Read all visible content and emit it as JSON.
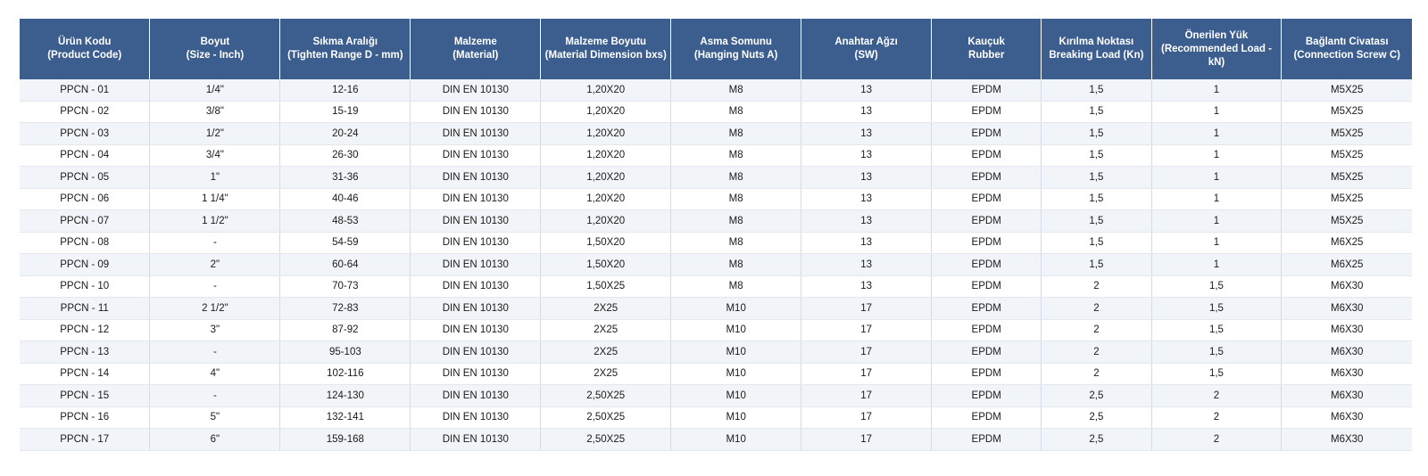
{
  "table": {
    "headers": [
      "Ürün Kodu\n(Product Code)",
      "Boyut\n(Size - Inch)",
      "Sıkma Aralığı\n(Tighten Range D - mm)",
      "Malzeme\n(Material)",
      "Malzeme Boyutu\n(Material Dimension bxs)",
      "Asma Somunu\n(Hanging Nuts A)",
      "Anahtar Ağzı\n(SW)",
      "Kauçuk\nRubber",
      "Kırılma Noktası\nBreaking Load (Kn)",
      "Önerilen Yük\n(Recommended Load -\nkN)",
      "Bağlantı Civatası\n(Connection Screw C)"
    ],
    "rows": [
      [
        "PPCN - 01",
        "1/4\"",
        "12-16",
        "DIN EN 10130",
        "1,20X20",
        "M8",
        "13",
        "EPDM",
        "1,5",
        "1",
        "M5X25"
      ],
      [
        "PPCN - 02",
        "3/8\"",
        "15-19",
        "DIN EN 10130",
        "1,20X20",
        "M8",
        "13",
        "EPDM",
        "1,5",
        "1",
        "M5X25"
      ],
      [
        "PPCN - 03",
        "1/2\"",
        "20-24",
        "DIN EN 10130",
        "1,20X20",
        "M8",
        "13",
        "EPDM",
        "1,5",
        "1",
        "M5X25"
      ],
      [
        "PPCN - 04",
        "3/4\"",
        "26-30",
        "DIN EN 10130",
        "1,20X20",
        "M8",
        "13",
        "EPDM",
        "1,5",
        "1",
        "M5X25"
      ],
      [
        "PPCN - 05",
        "1\"",
        "31-36",
        "DIN EN 10130",
        "1,20X20",
        "M8",
        "13",
        "EPDM",
        "1,5",
        "1",
        "M5X25"
      ],
      [
        "PPCN - 06",
        "1 1/4\"",
        "40-46",
        "DIN EN 10130",
        "1,20X20",
        "M8",
        "13",
        "EPDM",
        "1,5",
        "1",
        "M5X25"
      ],
      [
        "PPCN - 07",
        "1 1/2\"",
        "48-53",
        "DIN EN 10130",
        "1,20X20",
        "M8",
        "13",
        "EPDM",
        "1,5",
        "1",
        "M5X25"
      ],
      [
        "PPCN - 08",
        "-",
        "54-59",
        "DIN EN 10130",
        "1,50X20",
        "M8",
        "13",
        "EPDM",
        "1,5",
        "1",
        "M6X25"
      ],
      [
        "PPCN - 09",
        "2\"",
        "60-64",
        "DIN EN 10130",
        "1,50X20",
        "M8",
        "13",
        "EPDM",
        "1,5",
        "1",
        "M6X25"
      ],
      [
        "PPCN - 10",
        "-",
        "70-73",
        "DIN EN 10130",
        "1,50X25",
        "M8",
        "13",
        "EPDM",
        "2",
        "1,5",
        "M6X30"
      ],
      [
        "PPCN - 11",
        "2 1/2\"",
        "72-83",
        "DIN EN 10130",
        "2X25",
        "M10",
        "17",
        "EPDM",
        "2",
        "1,5",
        "M6X30"
      ],
      [
        "PPCN - 12",
        "3\"",
        "87-92",
        "DIN EN 10130",
        "2X25",
        "M10",
        "17",
        "EPDM",
        "2",
        "1,5",
        "M6X30"
      ],
      [
        "PPCN - 13",
        "-",
        "95-103",
        "DIN EN 10130",
        "2X25",
        "M10",
        "17",
        "EPDM",
        "2",
        "1,5",
        "M6X30"
      ],
      [
        "PPCN - 14",
        "4\"",
        "102-116",
        "DIN EN 10130",
        "2X25",
        "M10",
        "17",
        "EPDM",
        "2",
        "1,5",
        "M6X30"
      ],
      [
        "PPCN - 15",
        "-",
        "124-130",
        "DIN EN 10130",
        "2,50X25",
        "M10",
        "17",
        "EPDM",
        "2,5",
        "2",
        "M6X30"
      ],
      [
        "PPCN - 16",
        "5\"",
        "132-141",
        "DIN EN 10130",
        "2,50X25",
        "M10",
        "17",
        "EPDM",
        "2,5",
        "2",
        "M6X30"
      ],
      [
        "PPCN - 17",
        "6\"",
        "159-168",
        "DIN EN 10130",
        "2,50X25",
        "M10",
        "17",
        "EPDM",
        "2,5",
        "2",
        "M6X30"
      ]
    ]
  },
  "colors": {
    "header_bg": "#3b5e8f",
    "header_text": "#ffffff",
    "row_alt": "#f1f4f8"
  }
}
